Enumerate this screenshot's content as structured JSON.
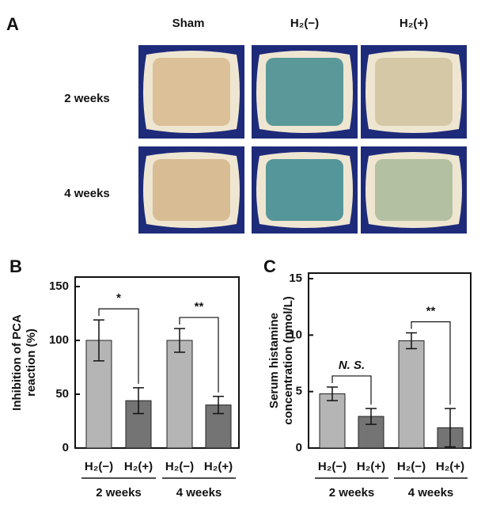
{
  "panel_a": {
    "label": "A",
    "columns": [
      "Sham",
      "H₂(−)",
      "H₂(+)"
    ],
    "rows": [
      "2 weeks",
      "4 weeks"
    ]
  },
  "chart_data": [
    {
      "type": "bar",
      "label": "B",
      "ylabel": [
        "Inhibition of PCA",
        "reaction (%)"
      ],
      "categories": [
        "H₂(−)",
        "H₂(+)",
        "H₂(−)",
        "H₂(+)"
      ],
      "groups": [
        "2 weeks",
        "4 weeks"
      ],
      "values": [
        100,
        44,
        100,
        40
      ],
      "errors": [
        19,
        12,
        11,
        8
      ],
      "colors": [
        "#b5b5b5",
        "#747474",
        "#b5b5b5",
        "#747474"
      ],
      "ylim": [
        0,
        150
      ],
      "yticks": [
        0,
        50,
        100,
        150
      ],
      "annotations": [
        "*",
        "**"
      ]
    },
    {
      "type": "bar",
      "label": "C",
      "ylabel": [
        "Serum histamine",
        "concentration (nmol/L)"
      ],
      "categories": [
        "H₂(−)",
        "H₂(+)",
        "H₂(−)",
        "H₂(+)"
      ],
      "groups": [
        "2 weeks",
        "4 weeks"
      ],
      "values": [
        4.8,
        2.8,
        9.5,
        1.8
      ],
      "errors": [
        0.6,
        0.7,
        0.7,
        1.7
      ],
      "colors": [
        "#b5b5b5",
        "#747474",
        "#b5b5b5",
        "#747474"
      ],
      "ylim": [
        0,
        15
      ],
      "yticks": [
        0,
        5,
        10,
        15
      ],
      "annotations": [
        "N. S.",
        "**"
      ]
    }
  ]
}
